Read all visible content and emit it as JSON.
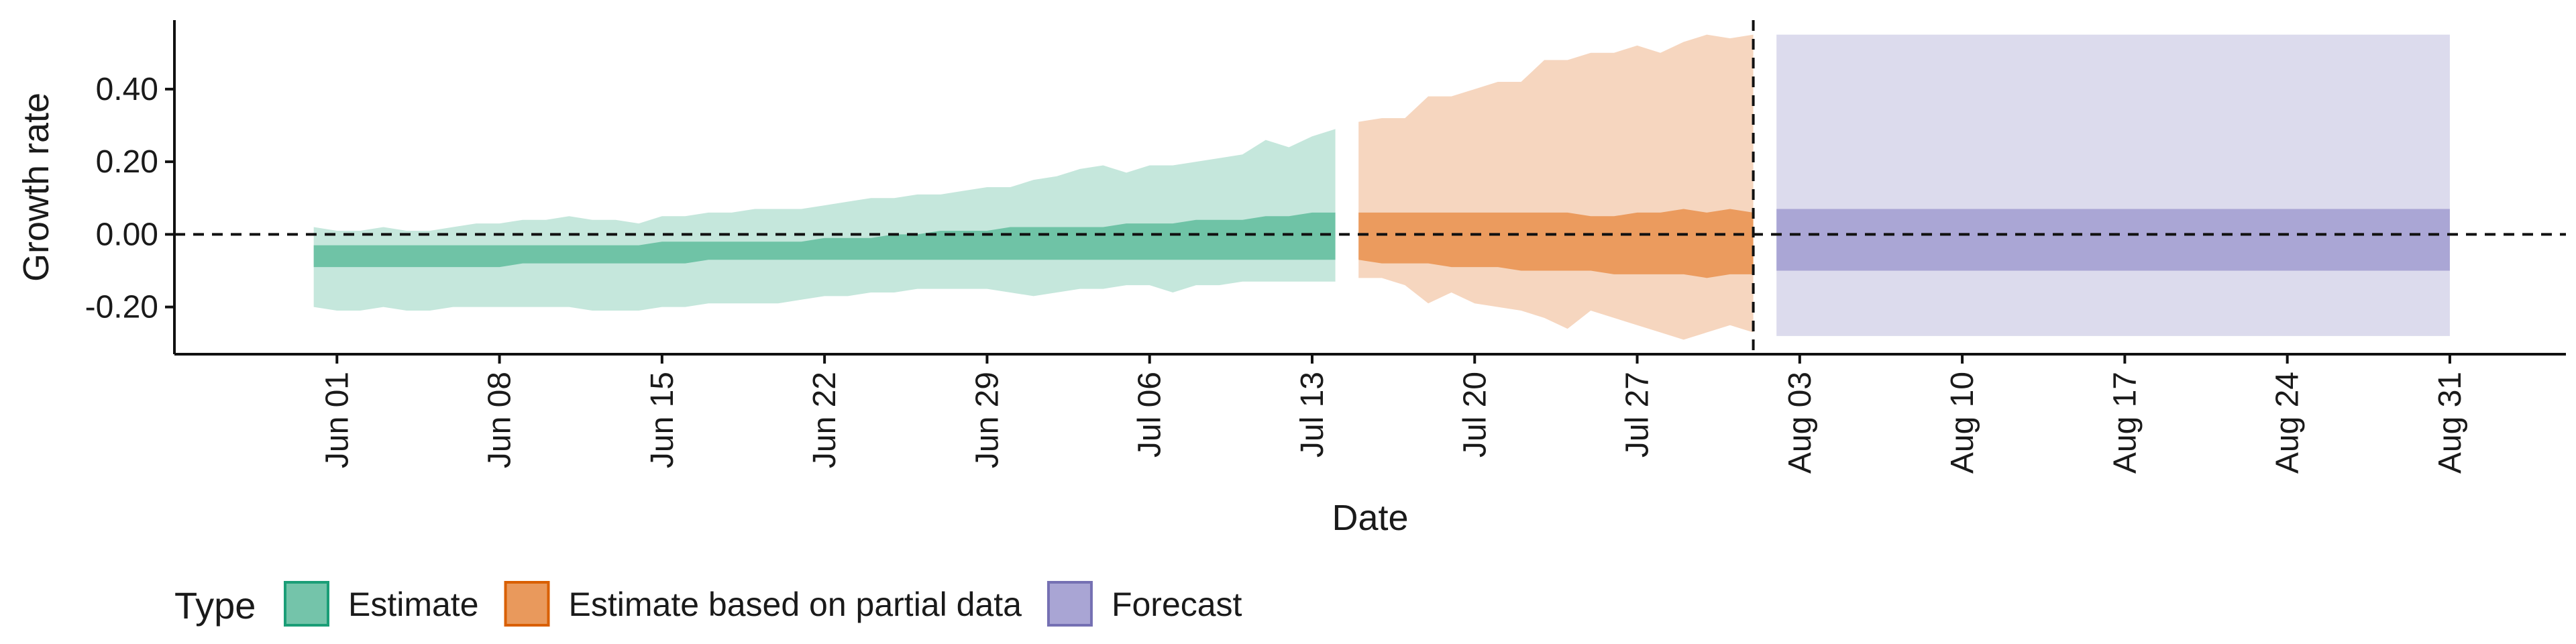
{
  "chart_data": {
    "type": "area",
    "title": "",
    "xlabel": "Date",
    "ylabel": "Growth rate",
    "ylim": [
      -0.33,
      0.59
    ],
    "y_ticks": [
      -0.2,
      0.0,
      0.2,
      0.4
    ],
    "y_tick_labels": [
      "-0.20",
      "0.00",
      "0.20",
      "0.40"
    ],
    "xlim": [
      "2021-05-25",
      "2021-09-05"
    ],
    "x_ticks": [
      "2021-06-01",
      "2021-06-08",
      "2021-06-15",
      "2021-06-22",
      "2021-06-29",
      "2021-07-06",
      "2021-07-13",
      "2021-07-20",
      "2021-07-27",
      "2021-08-03",
      "2021-08-10",
      "2021-08-17",
      "2021-08-24",
      "2021-08-31"
    ],
    "x_tick_labels": [
      "Jun 01",
      "Jun 08",
      "Jun 15",
      "Jun 22",
      "Jun 29",
      "Jul 06",
      "Jul 13",
      "Jul 20",
      "Jul 27",
      "Aug 03",
      "Aug 10",
      "Aug 17",
      "Aug 24",
      "Aug 31"
    ],
    "hline": 0.0,
    "vline": "2021-08-01",
    "grid": false,
    "legend": {
      "title": "Type",
      "position": "bottom",
      "entries": [
        {
          "label": "Estimate",
          "fill": "#74c4aa",
          "stroke": "#1b9e77"
        },
        {
          "label": "Estimate based on partial data",
          "fill": "#e9995c",
          "stroke": "#d95f02"
        },
        {
          "label": "Forecast",
          "fill": "#a9a5d4",
          "stroke": "#7570b3"
        }
      ]
    },
    "series": [
      {
        "name": "Estimate",
        "color": "#1b9e77",
        "x": [
          "2021-05-31",
          "2021-06-01",
          "2021-06-02",
          "2021-06-03",
          "2021-06-04",
          "2021-06-05",
          "2021-06-06",
          "2021-06-07",
          "2021-06-08",
          "2021-06-09",
          "2021-06-10",
          "2021-06-11",
          "2021-06-12",
          "2021-06-13",
          "2021-06-14",
          "2021-06-15",
          "2021-06-16",
          "2021-06-17",
          "2021-06-18",
          "2021-06-19",
          "2021-06-20",
          "2021-06-21",
          "2021-06-22",
          "2021-06-23",
          "2021-06-24",
          "2021-06-25",
          "2021-06-26",
          "2021-06-27",
          "2021-06-28",
          "2021-06-29",
          "2021-06-30",
          "2021-07-01",
          "2021-07-02",
          "2021-07-03",
          "2021-07-04",
          "2021-07-05",
          "2021-07-06",
          "2021-07-07",
          "2021-07-08",
          "2021-07-09",
          "2021-07-10",
          "2021-07-11",
          "2021-07-12",
          "2021-07-13",
          "2021-07-14"
        ],
        "lower_90": [
          -0.2,
          -0.21,
          -0.21,
          -0.2,
          -0.21,
          -0.21,
          -0.2,
          -0.2,
          -0.2,
          -0.2,
          -0.2,
          -0.2,
          -0.21,
          -0.21,
          -0.21,
          -0.2,
          -0.2,
          -0.19,
          -0.19,
          -0.19,
          -0.19,
          -0.18,
          -0.17,
          -0.17,
          -0.16,
          -0.16,
          -0.15,
          -0.15,
          -0.15,
          -0.15,
          -0.16,
          -0.17,
          -0.16,
          -0.15,
          -0.15,
          -0.14,
          -0.14,
          -0.16,
          -0.14,
          -0.14,
          -0.13,
          -0.13,
          -0.13,
          -0.13,
          -0.13
        ],
        "upper_90": [
          0.02,
          0.01,
          0.01,
          0.02,
          0.01,
          0.01,
          0.02,
          0.03,
          0.03,
          0.04,
          0.04,
          0.05,
          0.04,
          0.04,
          0.03,
          0.05,
          0.05,
          0.06,
          0.06,
          0.07,
          0.07,
          0.07,
          0.08,
          0.09,
          0.1,
          0.1,
          0.11,
          0.11,
          0.12,
          0.13,
          0.13,
          0.15,
          0.16,
          0.18,
          0.19,
          0.17,
          0.19,
          0.19,
          0.2,
          0.21,
          0.22,
          0.26,
          0.24,
          0.27,
          0.29
        ],
        "lower_50": [
          -0.09,
          -0.09,
          -0.09,
          -0.09,
          -0.09,
          -0.09,
          -0.09,
          -0.09,
          -0.09,
          -0.08,
          -0.08,
          -0.08,
          -0.08,
          -0.08,
          -0.08,
          -0.08,
          -0.08,
          -0.07,
          -0.07,
          -0.07,
          -0.07,
          -0.07,
          -0.07,
          -0.07,
          -0.07,
          -0.07,
          -0.07,
          -0.07,
          -0.07,
          -0.07,
          -0.07,
          -0.07,
          -0.07,
          -0.07,
          -0.07,
          -0.07,
          -0.07,
          -0.07,
          -0.07,
          -0.07,
          -0.07,
          -0.07,
          -0.07,
          -0.07,
          -0.07
        ],
        "upper_50": [
          -0.03,
          -0.03,
          -0.03,
          -0.03,
          -0.03,
          -0.03,
          -0.03,
          -0.03,
          -0.03,
          -0.03,
          -0.03,
          -0.03,
          -0.03,
          -0.03,
          -0.03,
          -0.02,
          -0.02,
          -0.02,
          -0.02,
          -0.02,
          -0.02,
          -0.02,
          -0.01,
          -0.01,
          -0.01,
          0.0,
          0.0,
          0.01,
          0.01,
          0.01,
          0.02,
          0.02,
          0.02,
          0.02,
          0.02,
          0.03,
          0.03,
          0.03,
          0.04,
          0.04,
          0.04,
          0.05,
          0.05,
          0.06,
          0.06
        ]
      },
      {
        "name": "Estimate based on partial data",
        "color": "#d95f02",
        "x": [
          "2021-07-15",
          "2021-07-16",
          "2021-07-17",
          "2021-07-18",
          "2021-07-19",
          "2021-07-20",
          "2021-07-21",
          "2021-07-22",
          "2021-07-23",
          "2021-07-24",
          "2021-07-25",
          "2021-07-26",
          "2021-07-27",
          "2021-07-28",
          "2021-07-29",
          "2021-07-30",
          "2021-07-31",
          "2021-08-01"
        ],
        "lower_90": [
          -0.12,
          -0.12,
          -0.14,
          -0.19,
          -0.16,
          -0.19,
          -0.2,
          -0.21,
          -0.23,
          -0.26,
          -0.21,
          -0.23,
          -0.25,
          -0.27,
          -0.29,
          -0.27,
          -0.25,
          -0.27
        ],
        "upper_90": [
          0.31,
          0.32,
          0.32,
          0.38,
          0.38,
          0.4,
          0.42,
          0.42,
          0.48,
          0.48,
          0.5,
          0.5,
          0.52,
          0.5,
          0.53,
          0.55,
          0.54,
          0.55
        ],
        "lower_50": [
          -0.07,
          -0.08,
          -0.08,
          -0.08,
          -0.09,
          -0.09,
          -0.09,
          -0.1,
          -0.1,
          -0.1,
          -0.1,
          -0.11,
          -0.11,
          -0.11,
          -0.11,
          -0.12,
          -0.11,
          -0.11
        ],
        "upper_50": [
          0.06,
          0.06,
          0.06,
          0.06,
          0.06,
          0.06,
          0.06,
          0.06,
          0.06,
          0.06,
          0.05,
          0.05,
          0.06,
          0.06,
          0.07,
          0.06,
          0.07,
          0.06
        ]
      },
      {
        "name": "Forecast",
        "color": "#7570b3",
        "x": [
          "2021-08-02",
          "2021-08-31"
        ],
        "lower_90": [
          -0.28,
          -0.28
        ],
        "upper_90": [
          0.55,
          0.55
        ],
        "lower_50": [
          -0.1,
          -0.1
        ],
        "upper_50": [
          0.07,
          0.07
        ]
      }
    ]
  }
}
